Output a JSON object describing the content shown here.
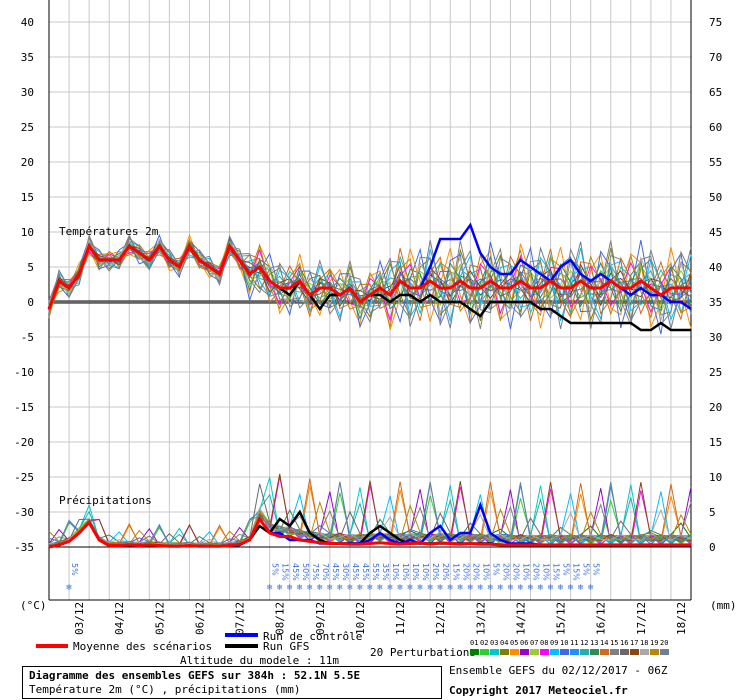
{
  "chart_data": {
    "type": "line",
    "temp_axis": {
      "min": -35,
      "max": 40,
      "ticks": [
        40,
        35,
        30,
        25,
        20,
        15,
        10,
        5,
        0,
        -5,
        -10,
        -15,
        -20,
        -25,
        -30,
        -35
      ],
      "unit": "(°C)"
    },
    "precip_axis": {
      "min": 0,
      "max": 75,
      "ticks": [
        75,
        70,
        65,
        60,
        55,
        50,
        45,
        40,
        35,
        30,
        25,
        20,
        15,
        10,
        5,
        0
      ],
      "tick_labels": [
        "75",
        "70",
        "65",
        "60",
        "55",
        "50",
        "45",
        "40",
        "35",
        "30",
        "25",
        "20",
        "15",
        "10",
        "5",
        "0"
      ],
      "unit": "(mm)"
    },
    "x_axis": {
      "hours": [
        0,
        384
      ],
      "date_labels": [
        "03/12",
        "04/12",
        "05/12",
        "06/12",
        "07/12",
        "08/12",
        "09/12",
        "10/12",
        "11/12",
        "12/12",
        "13/12",
        "14/12",
        "15/12",
        "16/12",
        "17/12",
        "18/12"
      ],
      "date_label_hours": [
        18,
        42,
        66,
        90,
        114,
        138,
        162,
        186,
        210,
        234,
        258,
        282,
        306,
        330,
        354,
        378
      ]
    },
    "section_labels": {
      "temperature": "Températures 2m",
      "precipitation": "Précipitations"
    },
    "series": [
      {
        "name": "Moyenne des scénarios",
        "color": "#ff0000",
        "temp_hours": [
          0,
          6,
          12,
          18,
          24,
          30,
          36,
          42,
          48,
          54,
          60,
          66,
          72,
          78,
          84,
          90,
          96,
          102,
          108,
          114,
          120,
          126,
          132,
          138,
          144,
          150,
          156,
          162,
          168,
          174,
          180,
          186,
          192,
          198,
          204,
          210,
          216,
          222,
          228,
          234,
          240,
          246,
          252,
          258,
          264,
          270,
          276,
          282,
          288,
          294,
          300,
          306,
          312,
          318,
          324,
          330,
          336,
          342,
          348,
          354,
          360,
          366,
          372,
          378,
          384
        ],
        "temp": [
          -1,
          3,
          2,
          4,
          8,
          6,
          6,
          6,
          8,
          7,
          6,
          8,
          6,
          5,
          8,
          6,
          5,
          4,
          8,
          6,
          4,
          5,
          3,
          2,
          2,
          3,
          1,
          2,
          2,
          1,
          2,
          0,
          1,
          2,
          1,
          3,
          2,
          2,
          3,
          2,
          2,
          3,
          2,
          2,
          3,
          2,
          2,
          3,
          2,
          2,
          3,
          2,
          2,
          3,
          2,
          2,
          3,
          2,
          2,
          3,
          2,
          1,
          2,
          2,
          2
        ],
        "precip": [
          0,
          0.3,
          0.8,
          2,
          3.5,
          1,
          0.2,
          0.2,
          0.3,
          0.2,
          0.3,
          0.2,
          0.1,
          0.1,
          0.2,
          0.1,
          0.1,
          0.1,
          0.2,
          0.4,
          1,
          4,
          2,
          1.5,
          1.5,
          1,
          0.8,
          0.6,
          0.5,
          0.5,
          0.4,
          0.4,
          0.5,
          0.6,
          0.5,
          0.4,
          0.5,
          0.6,
          0.4,
          0.6,
          0.5,
          0.4,
          0.5,
          0.4,
          0.4,
          0.3,
          0.3,
          0.3,
          0.3,
          0.3,
          0.3,
          0.3,
          0.3,
          0.3,
          0.3,
          0.3,
          0.3,
          0.3,
          0.3,
          0.3,
          0.3,
          0.3,
          0.3,
          0.3,
          0.3
        ]
      },
      {
        "name": "Run de contrôle",
        "color": "#0000ff",
        "temp_hours": [
          0,
          6,
          12,
          18,
          24,
          30,
          36,
          42,
          48,
          54,
          60,
          66,
          72,
          78,
          84,
          90,
          96,
          102,
          108,
          114,
          120,
          126,
          132,
          138,
          144,
          150,
          156,
          162,
          168,
          174,
          180,
          186,
          192,
          198,
          204,
          210,
          216,
          222,
          228,
          234,
          240,
          246,
          252,
          258,
          264,
          270,
          276,
          282,
          288,
          294,
          300,
          306,
          312,
          318,
          324,
          330,
          336,
          342,
          348,
          354,
          360,
          366,
          372,
          378,
          384
        ],
        "temp": [
          -1,
          3,
          2,
          4,
          8,
          6,
          6,
          6,
          8,
          7,
          6,
          8,
          6,
          5,
          8,
          6,
          5,
          4,
          8,
          6,
          4,
          5,
          3,
          2,
          2,
          3,
          1,
          2,
          2,
          1,
          2,
          0,
          1,
          2,
          1,
          3,
          2,
          2,
          5,
          9,
          9,
          9,
          11,
          7,
          5,
          4,
          4,
          6,
          5,
          4,
          3,
          5,
          6,
          4,
          3,
          4,
          3,
          2,
          1,
          2,
          1,
          1,
          0,
          0,
          -1
        ],
        "precip": [
          0,
          0.3,
          0.8,
          2,
          3.5,
          1,
          0.2,
          0.2,
          0.3,
          0.2,
          0.3,
          0.2,
          0.1,
          0.1,
          0.2,
          0.1,
          0.1,
          0.1,
          0.2,
          0.3,
          1,
          4,
          2,
          2,
          1,
          1,
          1,
          0.5,
          0.5,
          0.5,
          0.5,
          0.5,
          1,
          2,
          1,
          0.5,
          1,
          0.5,
          2,
          3,
          1,
          2,
          2,
          6,
          2,
          1,
          0.5,
          0.5,
          0.5,
          0.3,
          0.3,
          0.3,
          0.3,
          0.3,
          0.3,
          0.3,
          0.3,
          0.3,
          0.3,
          0.3,
          0.3,
          0.3,
          0.3,
          0.3,
          0.3
        ]
      },
      {
        "name": "Run GFS",
        "color": "#000000",
        "temp_hours": [
          0,
          6,
          12,
          18,
          24,
          30,
          36,
          42,
          48,
          54,
          60,
          66,
          72,
          78,
          84,
          90,
          96,
          102,
          108,
          114,
          120,
          126,
          132,
          138,
          144,
          150,
          156,
          162,
          168,
          174,
          180,
          186,
          192,
          198,
          204,
          210,
          216,
          222,
          228,
          234,
          240,
          246,
          252,
          258,
          264,
          270,
          276,
          282,
          288,
          294,
          300,
          306,
          312,
          318,
          324,
          330,
          336,
          342,
          348,
          354,
          360,
          366,
          372,
          378,
          384
        ],
        "temp": [
          -1,
          3,
          2,
          4,
          8,
          6,
          6,
          6,
          8,
          7,
          6,
          8,
          6,
          5,
          8,
          6,
          5,
          4,
          8,
          6,
          4,
          5,
          3,
          2,
          1,
          3,
          1,
          -1,
          1,
          1,
          2,
          0,
          1,
          1,
          0,
          1,
          1,
          0,
          1,
          0,
          0,
          0,
          -1,
          -2,
          0,
          0,
          0,
          0,
          0,
          -1,
          -1,
          -2,
          -3,
          -3,
          -3,
          -3,
          -3,
          -3,
          -3,
          -4,
          -4,
          -3,
          -4,
          -4,
          -4
        ],
        "precip": [
          0,
          0.3,
          0.8,
          2,
          3.5,
          1,
          0.2,
          0.2,
          0.3,
          0.2,
          0.3,
          0.2,
          0.1,
          0.1,
          0.2,
          0.1,
          0.1,
          0.1,
          0.2,
          0.3,
          1,
          3,
          2,
          4,
          3,
          5,
          2,
          1,
          0.5,
          0.5,
          0.5,
          0.5,
          2,
          3,
          2,
          1,
          0.5,
          0.5,
          0.5,
          0.5,
          0.5,
          0.5,
          0.5,
          0.5,
          0.5,
          0.3,
          0.3,
          0.3,
          0.3,
          0.3,
          0.3,
          0.3,
          0.3,
          0.3,
          0.3,
          0.3,
          0.3,
          0.3,
          0.3,
          0.3,
          0.3,
          0.3,
          0.3,
          0.3,
          0.3
        ]
      }
    ],
    "perturbation_colors": [
      "#008000",
      "#32cd32",
      "#00c8c8",
      "#808000",
      "#ff8c00",
      "#9900cc",
      "#9acd32",
      "#ff00ff",
      "#00bfff",
      "#4169e1",
      "#1e90ff",
      "#20b2aa",
      "#2e8b57",
      "#d2691e",
      "#808080",
      "#696969",
      "#8b4513",
      "#a9a9a9",
      "#b8860b",
      "#708090"
    ],
    "snow_labels": [
      {
        "hour": 12,
        "text": "5%"
      },
      {
        "hour": 132,
        "text": "5%"
      },
      {
        "hour": 138,
        "text": "15%"
      },
      {
        "hour": 144,
        "text": "45%"
      },
      {
        "hour": 150,
        "text": "50%"
      },
      {
        "hour": 156,
        "text": "75%"
      },
      {
        "hour": 162,
        "text": "70%"
      },
      {
        "hour": 168,
        "text": "45%"
      },
      {
        "hour": 174,
        "text": "30%"
      },
      {
        "hour": 180,
        "text": "45%"
      },
      {
        "hour": 186,
        "text": "45%"
      },
      {
        "hour": 192,
        "text": "55%"
      },
      {
        "hour": 198,
        "text": "35%"
      },
      {
        "hour": 204,
        "text": "10%"
      },
      {
        "hour": 210,
        "text": "10%"
      },
      {
        "hour": 216,
        "text": "10%"
      },
      {
        "hour": 222,
        "text": "10%"
      },
      {
        "hour": 228,
        "text": "20%"
      },
      {
        "hour": 234,
        "text": "20%"
      },
      {
        "hour": 240,
        "text": "15%"
      },
      {
        "hour": 246,
        "text": "20%"
      },
      {
        "hour": 252,
        "text": "20%"
      },
      {
        "hour": 258,
        "text": "10%"
      },
      {
        "hour": 264,
        "text": "5%"
      },
      {
        "hour": 270,
        "text": "20%"
      },
      {
        "hour": 276,
        "text": "20%"
      },
      {
        "hour": 282,
        "text": "10%"
      },
      {
        "hour": 288,
        "text": "20%"
      },
      {
        "hour": 294,
        "text": "10%"
      },
      {
        "hour": 300,
        "text": "15%"
      },
      {
        "hour": 306,
        "text": "5%"
      },
      {
        "hour": 312,
        "text": "15%"
      },
      {
        "hour": 318,
        "text": "5%"
      },
      {
        "hour": 324,
        "text": "5%"
      }
    ]
  },
  "legend": {
    "mean_label": "Moyenne des scénarios",
    "control_label": "Run de contrôle",
    "gfs_label": "Run GFS",
    "perturbations_label": "20 Perturbations",
    "perturbation_numbers": [
      "01",
      "02",
      "03",
      "04",
      "05",
      "06",
      "07",
      "08",
      "09",
      "10",
      "11",
      "12",
      "13",
      "14",
      "15",
      "16",
      "17",
      "18",
      "19",
      "20"
    ],
    "altitude": "Altitude du modele : 11m"
  },
  "footer": {
    "title": "Diagramme des ensembles GEFS sur 384h : 52.1N 5.5E",
    "subtitle": "Température 2m (°C) , précipitations (mm)",
    "run_info": "Ensemble GEFS du 02/12/2017 - 06Z",
    "copyright": "Copyright 2017 Meteociel.fr"
  },
  "colors": {
    "grid": "#c8c8c8",
    "mean": "#ff0000",
    "control": "#0000ff",
    "gfs": "#000000",
    "snow": "#3a6fd8"
  }
}
